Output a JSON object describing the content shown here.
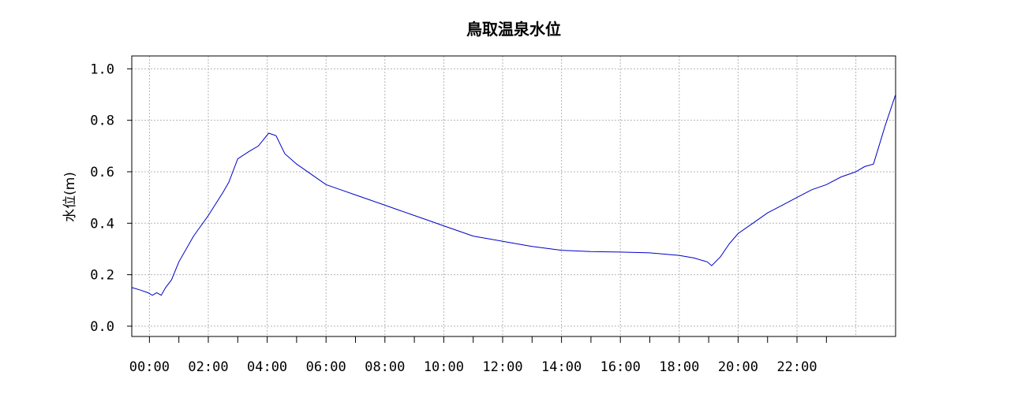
{
  "chart_data": {
    "type": "line",
    "title": "鳥取温泉水位",
    "xlabel": "",
    "ylabel": "水位(m)",
    "xlim": [
      -0.6,
      25.35
    ],
    "ylim": [
      -0.04,
      1.05
    ],
    "grid": true,
    "legend": "none",
    "line_color": "#0000c8",
    "yticks": [
      "0.0",
      "0.2",
      "0.4",
      "0.6",
      "0.8",
      "1.0"
    ],
    "xticks": [
      "00:00",
      "02:00",
      "04:00",
      "06:00",
      "08:00",
      "10:00",
      "12:00",
      "14:00",
      "16:00",
      "18:00",
      "20:00",
      "22:00"
    ],
    "series": [
      {
        "x": [
          -0.6,
          -0.3,
          -0.05,
          0.1,
          0.25,
          0.4,
          0.55,
          0.75,
          1.0,
          1.5,
          2.0,
          2.5,
          2.7,
          3.0,
          3.4,
          3.7,
          4.05,
          4.3,
          4.6,
          5.0,
          5.5,
          6.0,
          6.5,
          7.0,
          7.5,
          8.0,
          8.5,
          9.0,
          9.5,
          10.0,
          10.5,
          11.0,
          12.0,
          13.0,
          14.0,
          15.0,
          16.0,
          17.0,
          18.0,
          18.5,
          18.95,
          19.1,
          19.4,
          19.7,
          20.0,
          20.5,
          21.0,
          21.5,
          22.0,
          22.5,
          23.0,
          23.5,
          24.0,
          24.3,
          24.6,
          25.0,
          25.35
        ],
        "y": [
          0.15,
          0.14,
          0.13,
          0.12,
          0.13,
          0.12,
          0.15,
          0.18,
          0.25,
          0.35,
          0.43,
          0.52,
          0.56,
          0.65,
          0.68,
          0.7,
          0.75,
          0.74,
          0.67,
          0.63,
          0.59,
          0.55,
          0.53,
          0.51,
          0.49,
          0.47,
          0.45,
          0.43,
          0.41,
          0.39,
          0.37,
          0.35,
          0.33,
          0.31,
          0.295,
          0.29,
          0.288,
          0.285,
          0.275,
          0.265,
          0.25,
          0.235,
          0.27,
          0.32,
          0.36,
          0.4,
          0.44,
          0.47,
          0.5,
          0.53,
          0.55,
          0.58,
          0.6,
          0.62,
          0.63,
          0.78,
          0.9
        ]
      }
    ]
  }
}
